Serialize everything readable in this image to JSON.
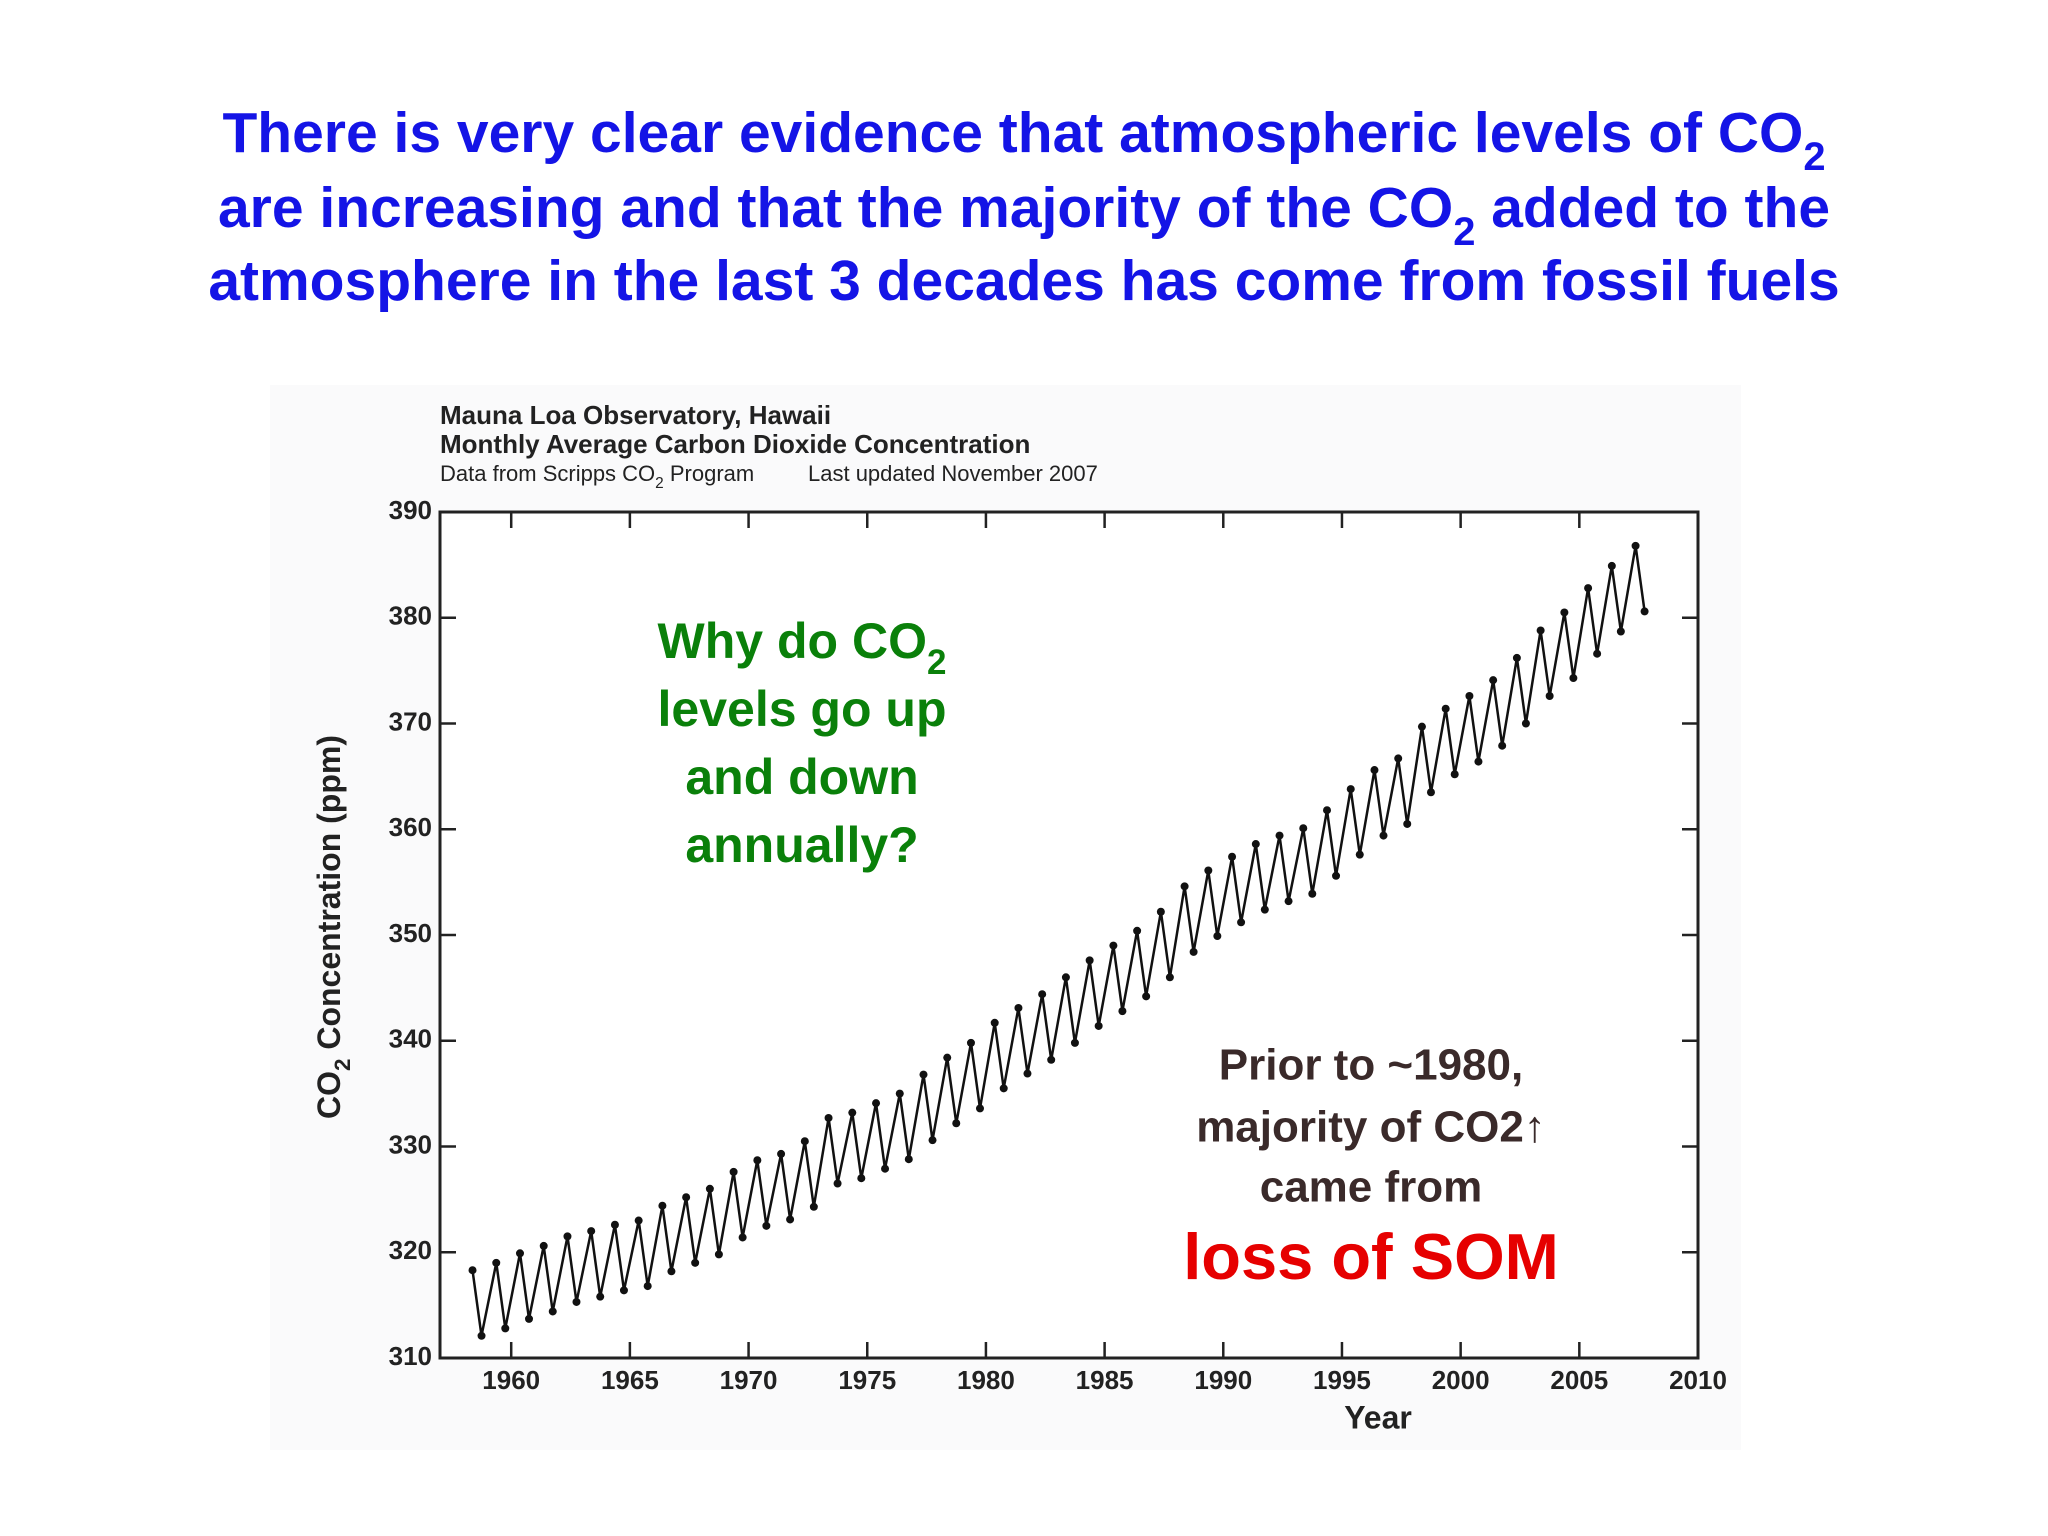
{
  "slide": {
    "heading": [
      [
        "There is very clear evidence that atmospheric levels of CO",
        "2"
      ],
      [
        "are increasing and that the majority of the CO",
        "2",
        " added to the"
      ],
      [
        "atmosphere in the last 3 decades has come from fossil fuels"
      ]
    ],
    "question": [
      [
        "Why do CO",
        "2"
      ],
      [
        "levels go up"
      ],
      [
        "and down"
      ],
      [
        "annually?"
      ]
    ],
    "note": [
      "Prior to ~1980,",
      "majority of CO2↑",
      "came from"
    ],
    "note_highlight": "loss of SOM"
  },
  "chart_data": {
    "type": "line",
    "title": "Mauna Loa Observatory, Hawaii",
    "subtitle": "Monthly Average Carbon Dioxide Concentration",
    "source": [
      "Data from Scripps CO",
      "2",
      " Program"
    ],
    "updated": "Last updated November 2007",
    "x_label": "Year",
    "y_label": [
      "CO",
      "2",
      " Concentration (ppm)"
    ],
    "color": "#111111",
    "xlim": [
      1957,
      2010
    ],
    "ylim": [
      310,
      390
    ],
    "xticks": [
      1960,
      1965,
      1970,
      1975,
      1980,
      1985,
      1990,
      1995,
      2000,
      2005,
      2010
    ],
    "yticks": [
      310,
      320,
      330,
      340,
      350,
      360,
      370,
      380,
      390
    ],
    "x": [
      1958.37,
      1958.75,
      1959.37,
      1959.75,
      1960.37,
      1960.75,
      1961.37,
      1961.75,
      1962.37,
      1962.75,
      1963.37,
      1963.75,
      1964.37,
      1964.75,
      1965.37,
      1965.75,
      1966.37,
      1966.75,
      1967.37,
      1967.75,
      1968.37,
      1968.75,
      1969.37,
      1969.75,
      1970.37,
      1970.75,
      1971.37,
      1971.75,
      1972.37,
      1972.75,
      1973.37,
      1973.75,
      1974.37,
      1974.75,
      1975.37,
      1975.75,
      1976.37,
      1976.75,
      1977.37,
      1977.75,
      1978.37,
      1978.75,
      1979.37,
      1979.75,
      1980.37,
      1980.75,
      1981.37,
      1981.75,
      1982.37,
      1982.75,
      1983.37,
      1983.75,
      1984.37,
      1984.75,
      1985.37,
      1985.75,
      1986.37,
      1986.75,
      1987.37,
      1987.75,
      1988.37,
      1988.75,
      1989.37,
      1989.75,
      1990.37,
      1990.75,
      1991.37,
      1991.75,
      1992.37,
      1992.75,
      1993.37,
      1993.75,
      1994.37,
      1994.75,
      1995.37,
      1995.75,
      1996.37,
      1996.75,
      1997.37,
      1997.75,
      1998.37,
      1998.75,
      1999.37,
      1999.75,
      2000.37,
      2000.75,
      2001.37,
      2001.75,
      2002.37,
      2002.75,
      2003.37,
      2003.75,
      2004.37,
      2004.75,
      2005.37,
      2005.75,
      2006.37,
      2006.75,
      2007.37,
      2007.75
    ],
    "values": [
      318.3,
      312.1,
      319.0,
      312.8,
      319.9,
      313.7,
      320.6,
      314.4,
      321.5,
      315.3,
      322.0,
      315.8,
      322.6,
      316.4,
      323.0,
      316.8,
      324.4,
      318.2,
      325.2,
      319.0,
      326.0,
      319.8,
      327.6,
      321.4,
      328.7,
      322.5,
      329.3,
      323.1,
      330.5,
      324.3,
      332.7,
      326.5,
      333.2,
      327.0,
      334.1,
      327.9,
      335.0,
      328.8,
      336.8,
      330.6,
      338.4,
      332.2,
      339.8,
      333.6,
      341.7,
      335.5,
      343.1,
      336.9,
      344.4,
      338.2,
      346.0,
      339.8,
      347.6,
      341.4,
      349.0,
      342.8,
      350.4,
      344.2,
      352.2,
      346.0,
      354.6,
      348.4,
      356.1,
      349.9,
      357.4,
      351.2,
      358.6,
      352.4,
      359.4,
      353.2,
      360.1,
      353.9,
      361.8,
      355.6,
      363.8,
      357.6,
      365.6,
      359.4,
      366.7,
      360.5,
      369.7,
      363.5,
      371.4,
      365.2,
      372.6,
      366.4,
      374.1,
      367.9,
      376.2,
      370.0,
      378.8,
      372.6,
      380.5,
      374.3,
      382.8,
      376.6,
      384.9,
      378.7,
      386.8,
      380.6
    ]
  }
}
